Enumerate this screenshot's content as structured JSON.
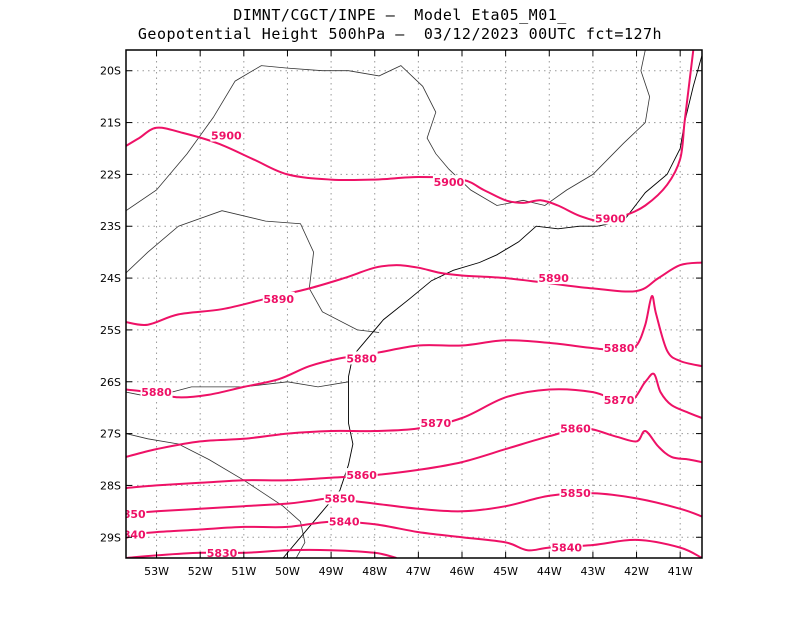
{
  "title": {
    "line1": "DIMNT/CGCT/INPE –  Model Eta05_M01_",
    "line2": "Geopotential Height 500hPa –  03/12/2023 00UTC fct=127h"
  },
  "axes": {
    "lon_ticks": [
      "53W",
      "52W",
      "51W",
      "50W",
      "49W",
      "48W",
      "47W",
      "46W",
      "45W",
      "44W",
      "43W",
      "42W",
      "41W"
    ],
    "lat_ticks": [
      "20S",
      "21S",
      "22S",
      "23S",
      "24S",
      "25S",
      "26S",
      "27S",
      "28S",
      "29S"
    ],
    "lon_range": [
      -53.7,
      -40.5
    ],
    "lat_range": [
      -29.4,
      -19.6
    ]
  },
  "colors": {
    "contour": "#ee1166",
    "coast": "#000000",
    "grid": "#999999"
  },
  "chart_data": {
    "type": "contour-map",
    "variable": "Geopotential Height 500hPa",
    "units": "gpm",
    "contours": [
      {
        "level": 5900,
        "label": "5900",
        "points": [
          [
            -53.7,
            -21.45
          ],
          [
            -53.4,
            -21.3
          ],
          [
            -53.0,
            -21.1
          ],
          [
            -52.4,
            -21.2
          ],
          [
            -51.6,
            -21.4
          ],
          [
            -50.8,
            -21.7
          ],
          [
            -50.0,
            -22.0
          ],
          [
            -49.0,
            -22.1
          ],
          [
            -48.0,
            -22.1
          ],
          [
            -47.0,
            -22.05
          ],
          [
            -46.0,
            -22.1
          ],
          [
            -45.5,
            -22.3
          ],
          [
            -45.0,
            -22.5
          ],
          [
            -44.6,
            -22.55
          ],
          [
            -44.2,
            -22.5
          ],
          [
            -43.8,
            -22.6
          ],
          [
            -43.3,
            -22.8
          ],
          [
            -42.8,
            -22.9
          ],
          [
            -42.3,
            -22.8
          ],
          [
            -41.8,
            -22.6
          ],
          [
            -41.3,
            -22.2
          ],
          [
            -41.0,
            -21.7
          ],
          [
            -40.9,
            -21.0
          ],
          [
            -40.8,
            -20.3
          ],
          [
            -40.7,
            -19.6
          ]
        ]
      },
      {
        "level": 5890,
        "label": "5890",
        "points": [
          [
            -53.7,
            -24.85
          ],
          [
            -53.2,
            -24.9
          ],
          [
            -52.5,
            -24.7
          ],
          [
            -51.5,
            -24.6
          ],
          [
            -50.5,
            -24.4
          ],
          [
            -49.5,
            -24.2
          ],
          [
            -48.7,
            -24.0
          ],
          [
            -48.0,
            -23.8
          ],
          [
            -47.5,
            -23.75
          ],
          [
            -47.0,
            -23.8
          ],
          [
            -46.5,
            -23.9
          ],
          [
            -46.0,
            -23.95
          ],
          [
            -45.0,
            -24.0
          ],
          [
            -44.0,
            -24.1
          ],
          [
            -43.0,
            -24.2
          ],
          [
            -42.0,
            -24.25
          ],
          [
            -41.5,
            -24.0
          ],
          [
            -41.0,
            -23.75
          ],
          [
            -40.5,
            -23.7
          ]
        ]
      },
      {
        "level": 5880,
        "label": "5880",
        "points": [
          [
            -53.7,
            -26.15
          ],
          [
            -53.2,
            -26.2
          ],
          [
            -52.5,
            -26.3
          ],
          [
            -51.8,
            -26.25
          ],
          [
            -51.0,
            -26.1
          ],
          [
            -50.2,
            -25.95
          ],
          [
            -49.5,
            -25.7
          ],
          [
            -48.8,
            -25.55
          ],
          [
            -48.0,
            -25.45
          ],
          [
            -47.0,
            -25.3
          ],
          [
            -46.0,
            -25.3
          ],
          [
            -45.0,
            -25.2
          ],
          [
            -44.0,
            -25.25
          ],
          [
            -43.0,
            -25.35
          ],
          [
            -42.3,
            -25.4
          ],
          [
            -42.0,
            -25.3
          ],
          [
            -41.8,
            -24.9
          ],
          [
            -41.65,
            -24.35
          ],
          [
            -41.55,
            -24.7
          ],
          [
            -41.3,
            -25.4
          ],
          [
            -41.0,
            -25.6
          ],
          [
            -40.5,
            -25.7
          ]
        ]
      },
      {
        "level": 5870,
        "label": "5870",
        "points": [
          [
            -53.7,
            -27.45
          ],
          [
            -53.0,
            -27.3
          ],
          [
            -52.0,
            -27.15
          ],
          [
            -51.0,
            -27.1
          ],
          [
            -50.0,
            -27.0
          ],
          [
            -49.0,
            -26.95
          ],
          [
            -48.0,
            -26.95
          ],
          [
            -47.0,
            -26.9
          ],
          [
            -46.0,
            -26.7
          ],
          [
            -45.0,
            -26.3
          ],
          [
            -44.0,
            -26.15
          ],
          [
            -43.0,
            -26.2
          ],
          [
            -42.2,
            -26.4
          ],
          [
            -41.8,
            -26.0
          ],
          [
            -41.6,
            -25.85
          ],
          [
            -41.45,
            -26.2
          ],
          [
            -41.2,
            -26.45
          ],
          [
            -40.8,
            -26.6
          ],
          [
            -40.5,
            -26.7
          ]
        ]
      },
      {
        "level": 5860,
        "label": "5860",
        "points": [
          [
            -53.7,
            -28.05
          ],
          [
            -53.0,
            -28.0
          ],
          [
            -52.0,
            -27.95
          ],
          [
            -51.0,
            -27.9
          ],
          [
            -50.0,
            -27.9
          ],
          [
            -49.0,
            -27.85
          ],
          [
            -48.0,
            -27.8
          ],
          [
            -47.0,
            -27.7
          ],
          [
            -46.0,
            -27.55
          ],
          [
            -45.0,
            -27.3
          ],
          [
            -44.0,
            -27.05
          ],
          [
            -43.2,
            -26.9
          ],
          [
            -42.5,
            -27.05
          ],
          [
            -42.0,
            -27.15
          ],
          [
            -41.8,
            -26.95
          ],
          [
            -41.5,
            -27.25
          ],
          [
            -41.2,
            -27.45
          ],
          [
            -40.8,
            -27.5
          ],
          [
            -40.5,
            -27.55
          ]
        ]
      },
      {
        "level": 5850,
        "label": "5850",
        "points": [
          [
            -53.7,
            -28.55
          ],
          [
            -53.0,
            -28.5
          ],
          [
            -52.0,
            -28.45
          ],
          [
            -51.0,
            -28.4
          ],
          [
            -50.0,
            -28.35
          ],
          [
            -49.5,
            -28.3
          ],
          [
            -49.0,
            -28.25
          ],
          [
            -48.5,
            -28.3
          ],
          [
            -48.0,
            -28.35
          ],
          [
            -47.0,
            -28.45
          ],
          [
            -46.0,
            -28.5
          ],
          [
            -45.0,
            -28.4
          ],
          [
            -44.0,
            -28.2
          ],
          [
            -43.0,
            -28.15
          ],
          [
            -42.0,
            -28.25
          ],
          [
            -41.0,
            -28.45
          ],
          [
            -40.5,
            -28.6
          ]
        ]
      },
      {
        "level": 5840,
        "label": "5840",
        "points": [
          [
            -53.7,
            -28.95
          ],
          [
            -53.0,
            -28.9
          ],
          [
            -52.0,
            -28.85
          ],
          [
            -51.0,
            -28.8
          ],
          [
            -50.0,
            -28.8
          ],
          [
            -49.0,
            -28.7
          ],
          [
            -48.0,
            -28.75
          ],
          [
            -47.0,
            -28.9
          ],
          [
            -46.0,
            -29.0
          ],
          [
            -45.0,
            -29.1
          ],
          [
            -44.5,
            -29.25
          ],
          [
            -44.0,
            -29.2
          ],
          [
            -43.0,
            -29.15
          ],
          [
            -42.0,
            -29.05
          ],
          [
            -41.0,
            -29.2
          ],
          [
            -40.5,
            -29.4
          ]
        ]
      },
      {
        "level": 5830,
        "label": "5830",
        "points": [
          [
            -53.7,
            -29.4
          ],
          [
            -53.0,
            -29.35
          ],
          [
            -52.0,
            -29.3
          ],
          [
            -51.0,
            -29.3
          ],
          [
            -50.0,
            -29.25
          ],
          [
            -49.0,
            -29.25
          ],
          [
            -48.0,
            -29.3
          ],
          [
            -47.5,
            -29.4
          ]
        ]
      }
    ],
    "labels": [
      {
        "text": "5900",
        "lon": -51.4,
        "lat": -21.25
      },
      {
        "text": "5900",
        "lon": -46.3,
        "lat": -22.15
      },
      {
        "text": "5900",
        "lon": -42.6,
        "lat": -22.85
      },
      {
        "text": "5890",
        "lon": -50.2,
        "lat": -24.4
      },
      {
        "text": "5890",
        "lon": -43.9,
        "lat": -24.0
      },
      {
        "text": "5880",
        "lon": -53.0,
        "lat": -26.2
      },
      {
        "text": "5880",
        "lon": -48.3,
        "lat": -25.55
      },
      {
        "text": "5880",
        "lon": -42.4,
        "lat": -25.35
      },
      {
        "text": "5870",
        "lon": -46.6,
        "lat": -26.8
      },
      {
        "text": "5870",
        "lon": -42.4,
        "lat": -26.35
      },
      {
        "text": "5860",
        "lon": -48.3,
        "lat": -27.8
      },
      {
        "text": "5860",
        "lon": -43.4,
        "lat": -26.9
      },
      {
        "text": "5850",
        "lon": -53.6,
        "lat": -28.55
      },
      {
        "text": "5850",
        "lon": -48.8,
        "lat": -28.25
      },
      {
        "text": "5850",
        "lon": -43.4,
        "lat": -28.15
      },
      {
        "text": "5840",
        "lon": -53.6,
        "lat": -28.95
      },
      {
        "text": "5840",
        "lon": -48.7,
        "lat": -28.7
      },
      {
        "text": "5840",
        "lon": -43.6,
        "lat": -29.2
      },
      {
        "text": "5830",
        "lon": -51.5,
        "lat": -29.3
      }
    ]
  },
  "coastline": [
    [
      [
        -40.5,
        -19.7
      ],
      [
        -40.7,
        -20.3
      ],
      [
        -40.9,
        -21.0
      ],
      [
        -41.0,
        -21.5
      ],
      [
        -41.3,
        -22.0
      ],
      [
        -41.8,
        -22.35
      ],
      [
        -42.3,
        -22.9
      ],
      [
        -42.9,
        -23.0
      ],
      [
        -43.3,
        -23.0
      ],
      [
        -43.8,
        -23.05
      ],
      [
        -44.3,
        -23.0
      ],
      [
        -44.7,
        -23.3
      ],
      [
        -45.2,
        -23.55
      ],
      [
        -45.6,
        -23.7
      ],
      [
        -46.2,
        -23.85
      ],
      [
        -46.7,
        -24.05
      ],
      [
        -47.2,
        -24.4
      ],
      [
        -47.8,
        -24.8
      ],
      [
        -48.2,
        -25.2
      ],
      [
        -48.5,
        -25.5
      ],
      [
        -48.6,
        -25.9
      ],
      [
        -48.6,
        -26.3
      ],
      [
        -48.6,
        -26.8
      ],
      [
        -48.5,
        -27.2
      ],
      [
        -48.6,
        -27.6
      ],
      [
        -48.8,
        -28.1
      ],
      [
        -49.2,
        -28.5
      ],
      [
        -49.7,
        -29.0
      ],
      [
        -50.1,
        -29.4
      ]
    ]
  ],
  "borders": [
    [
      [
        -53.7,
        -22.7
      ],
      [
        -53.0,
        -22.3
      ],
      [
        -52.3,
        -21.6
      ],
      [
        -51.7,
        -20.9
      ],
      [
        -51.2,
        -20.2
      ],
      [
        -50.6,
        -19.9
      ],
      [
        -50.0,
        -19.95
      ],
      [
        -49.2,
        -20.0
      ],
      [
        -48.6,
        -20.0
      ],
      [
        -47.9,
        -20.1
      ],
      [
        -47.4,
        -19.9
      ],
      [
        -46.9,
        -20.3
      ],
      [
        -46.6,
        -20.8
      ],
      [
        -46.8,
        -21.3
      ],
      [
        -46.6,
        -21.6
      ],
      [
        -46.3,
        -21.9
      ],
      [
        -45.8,
        -22.3
      ],
      [
        -45.2,
        -22.6
      ],
      [
        -44.6,
        -22.5
      ],
      [
        -44.1,
        -22.6
      ],
      [
        -43.6,
        -22.3
      ],
      [
        -43.0,
        -22.0
      ],
      [
        -42.3,
        -21.4
      ],
      [
        -41.8,
        -21.0
      ],
      [
        -41.7,
        -20.5
      ],
      [
        -41.9,
        -20.0
      ],
      [
        -41.8,
        -19.6
      ]
    ],
    [
      [
        -53.7,
        -23.9
      ],
      [
        -53.2,
        -23.5
      ],
      [
        -52.5,
        -23.0
      ],
      [
        -51.5,
        -22.7
      ],
      [
        -50.5,
        -22.9
      ],
      [
        -49.7,
        -22.95
      ],
      [
        -49.4,
        -23.5
      ],
      [
        -49.5,
        -24.2
      ],
      [
        -49.2,
        -24.65
      ],
      [
        -48.4,
        -25.0
      ],
      [
        -47.9,
        -25.05
      ]
    ],
    [
      [
        -53.7,
        -26.2
      ],
      [
        -53.1,
        -26.3
      ],
      [
        -52.2,
        -26.1
      ],
      [
        -51.0,
        -26.1
      ],
      [
        -50.0,
        -26.0
      ],
      [
        -49.3,
        -26.1
      ],
      [
        -48.6,
        -26.0
      ]
    ],
    [
      [
        -53.7,
        -27.0
      ],
      [
        -53.2,
        -27.1
      ],
      [
        -52.5,
        -27.2
      ],
      [
        -51.8,
        -27.5
      ],
      [
        -51.0,
        -27.9
      ],
      [
        -50.1,
        -28.4
      ],
      [
        -49.7,
        -28.7
      ],
      [
        -49.6,
        -29.1
      ],
      [
        -49.8,
        -29.4
      ]
    ]
  ]
}
